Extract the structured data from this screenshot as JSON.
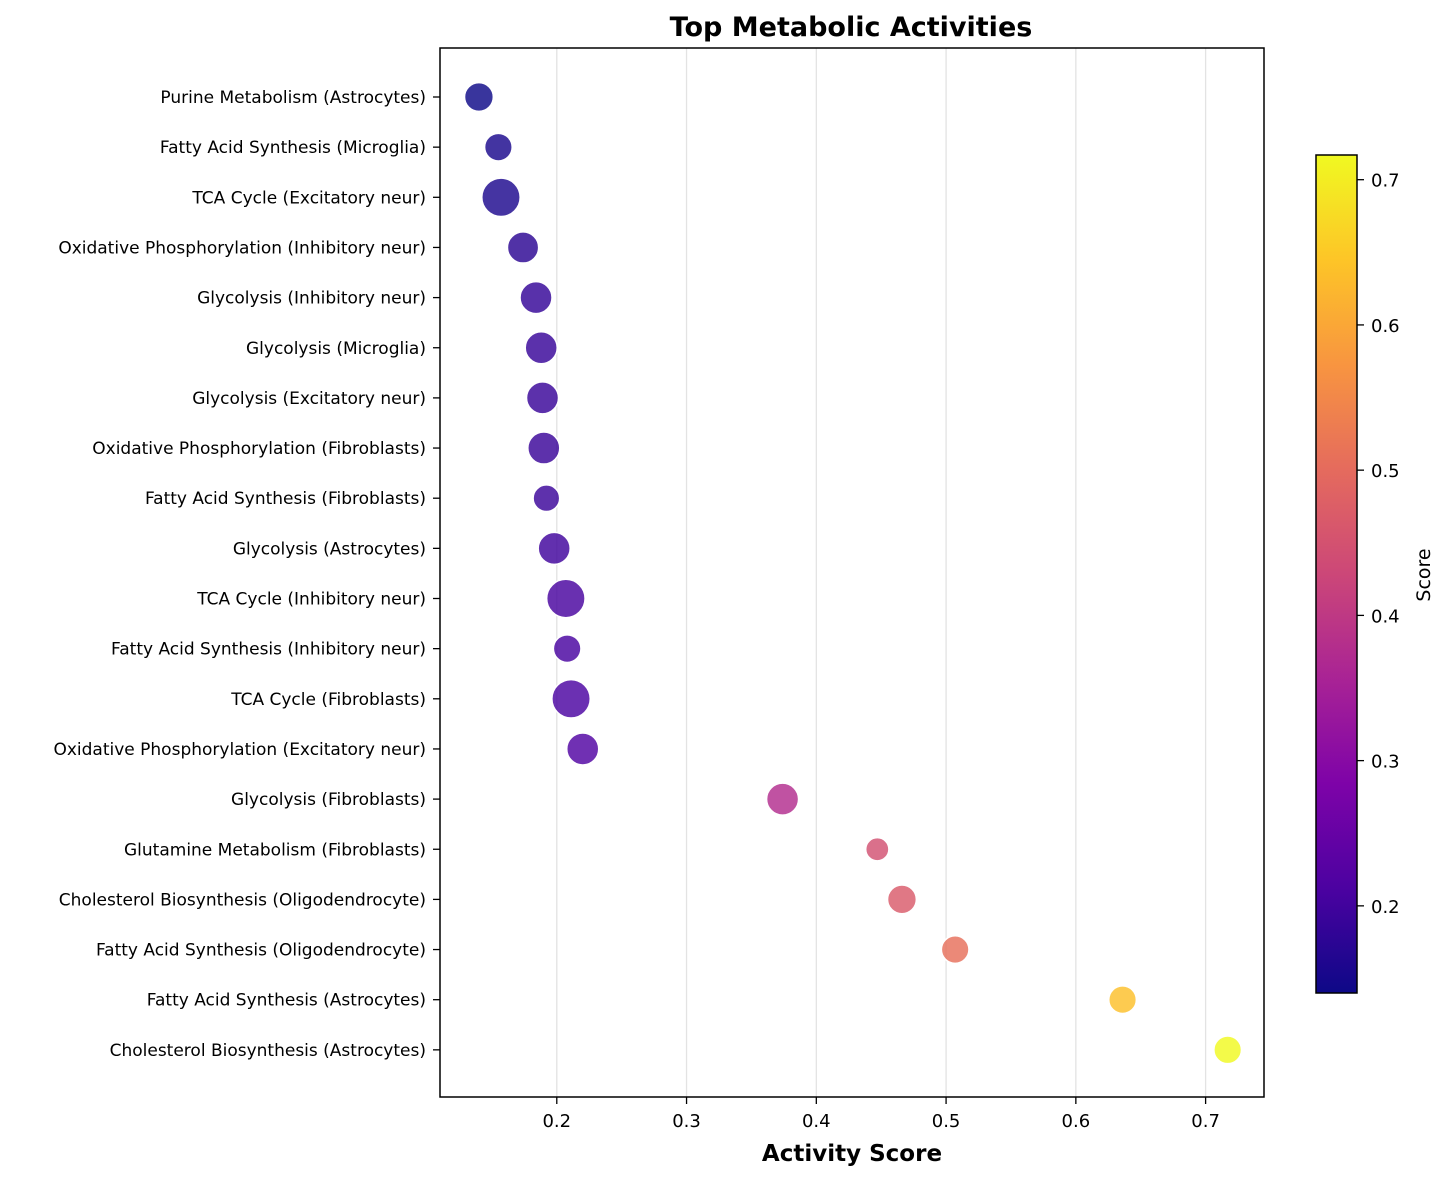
{
  "chart_data": {
    "type": "scatter",
    "title": "Top Metabolic Activities",
    "xlabel": "Activity Score",
    "ylabel": "",
    "xlim": [
      0.11,
      0.745
    ],
    "x_ticks": [
      0.2,
      0.3,
      0.4,
      0.5,
      0.6,
      0.7
    ],
    "x_tick_labels": [
      "0.2",
      "0.3",
      "0.4",
      "0.5",
      "0.6",
      "0.7"
    ],
    "grid": "x-axis vertical gridlines",
    "colormap": "plasma",
    "point_edge_color": "#ffffff",
    "categories": [
      "Purine Metabolism (Astrocytes)",
      "Fatty Acid Synthesis (Microglia)",
      "TCA Cycle (Excitatory neur)",
      "Oxidative Phosphorylation (Inhibitory neur)",
      "Glycolysis (Inhibitory neur)",
      "Glycolysis (Microglia)",
      "Glycolysis (Excitatory neur)",
      "Oxidative Phosphorylation (Fibroblasts)",
      "Fatty Acid Synthesis (Fibroblasts)",
      "Glycolysis (Astrocytes)",
      "TCA Cycle (Inhibitory neur)",
      "Fatty Acid Synthesis (Inhibitory neur)",
      "TCA Cycle (Fibroblasts)",
      "Oxidative Phosphorylation (Excitatory neur)",
      "Glycolysis (Fibroblasts)",
      "Glutamine Metabolism (Fibroblasts)",
      "Cholesterol Biosynthesis (Oligodendrocyte)",
      "Fatty Acid Synthesis (Oligodendrocyte)",
      "Fatty Acid Synthesis (Astrocytes)",
      "Cholesterol Biosynthesis (Astrocytes)"
    ],
    "values": [
      0.14,
      0.155,
      0.157,
      0.174,
      0.184,
      0.188,
      0.189,
      0.19,
      0.192,
      0.198,
      0.207,
      0.208,
      0.211,
      0.22,
      0.374,
      0.447,
      0.466,
      0.507,
      0.636,
      0.717
    ],
    "relative_marker_size": [
      0.45,
      0.4,
      0.85,
      0.55,
      0.58,
      0.58,
      0.58,
      0.58,
      0.36,
      0.58,
      0.85,
      0.4,
      0.85,
      0.58,
      0.58,
      0.22,
      0.45,
      0.4,
      0.4,
      0.4
    ],
    "colorbar": {
      "label": "Score",
      "range": [
        0.14,
        0.717
      ],
      "ticks": [
        0.2,
        0.3,
        0.4,
        0.5,
        0.6,
        0.7
      ],
      "tick_labels": [
        "0.2",
        "0.3",
        "0.4",
        "0.5",
        "0.6",
        "0.7"
      ]
    }
  }
}
